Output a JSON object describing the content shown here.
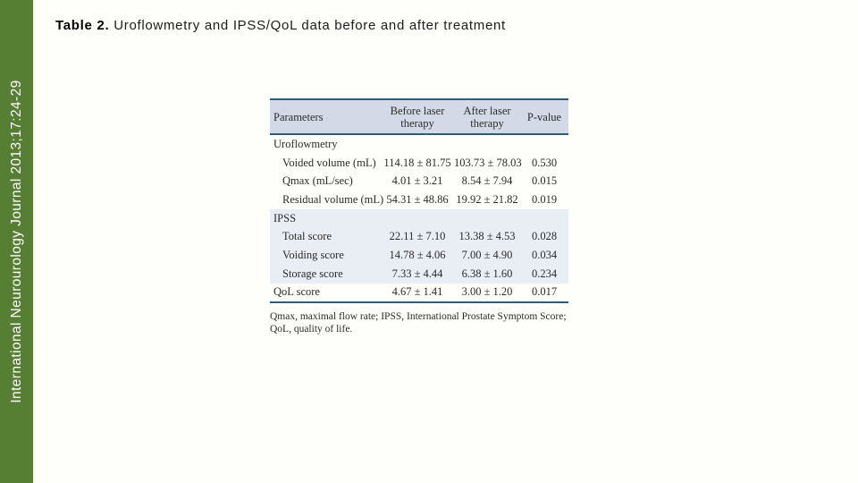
{
  "sidebar": {
    "citation": "International Neurourology Journal 2013;17:24-29",
    "bar_color": "#567f33",
    "text_color": "#ffffff"
  },
  "title": {
    "bold": "Table 2.",
    "rest": " Uroflowmetry and IPSS/QoL data before and after treatment"
  },
  "table": {
    "columns": [
      "Parameters",
      "Before laser therapy",
      "After laser therapy",
      "P-value"
    ],
    "rows": [
      {
        "label": "Uroflowmetry",
        "before": "",
        "after": "",
        "p": ""
      },
      {
        "label": "Voided volume (mL)",
        "before": "114.18 ± 81.75",
        "after": "103.73 ± 78.03",
        "p": "0.530"
      },
      {
        "label": "Qmax (mL/sec)",
        "before": "4.01 ± 3.21",
        "after": "8.54 ± 7.94",
        "p": "0.015"
      },
      {
        "label": "Residual volume (mL)",
        "before": "54.31 ± 48.86",
        "after": "19.92 ± 21.82",
        "p": "0.019"
      },
      {
        "label": "IPSS",
        "before": "",
        "after": "",
        "p": ""
      },
      {
        "label": "Total score",
        "before": "22.11 ± 7.10",
        "after": "13.38 ± 4.53",
        "p": "0.028"
      },
      {
        "label": "Voiding score",
        "before": "14.78 ± 4.06",
        "after": "7.00 ± 4.90",
        "p": "0.034"
      },
      {
        "label": "Storage score",
        "before": "7.33 ± 4.44",
        "after": "6.38 ± 1.60",
        "p": "0.234"
      },
      {
        "label": "QoL score",
        "before": "4.67 ± 1.41",
        "after": "3.00 ± 1.20",
        "p": "0.017"
      }
    ],
    "footnote": "Qmax, maximal flow rate; IPSS, International Prostate Symptom Score; QoL, quality of life.",
    "colors": {
      "header_bg": "#d3d9e6",
      "ipss_section_bg": "#e9edf4",
      "rule": "#2c5d74"
    }
  }
}
